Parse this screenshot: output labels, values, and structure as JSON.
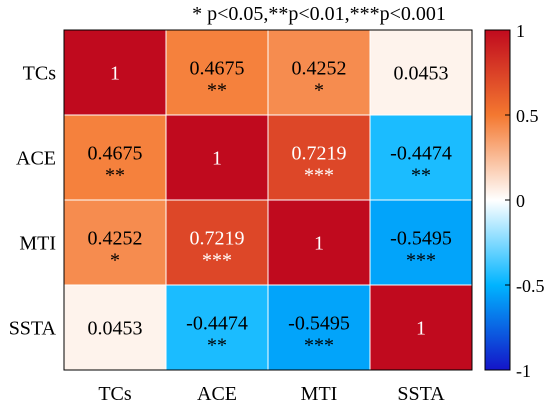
{
  "chart_data": {
    "type": "heatmap",
    "title": "* p<0.05,**p<0.01,***p<0.001",
    "rows": [
      "TCs",
      "ACE",
      "MTI",
      "SSTA"
    ],
    "columns": [
      "TCs",
      "ACE",
      "MTI",
      "SSTA"
    ],
    "cells": [
      [
        {
          "label": "1",
          "value": 1,
          "sig": ""
        },
        {
          "label": "0.4675",
          "value": 0.4675,
          "sig": "**"
        },
        {
          "label": "0.4252",
          "value": 0.4252,
          "sig": "*"
        },
        {
          "label": "0.0453",
          "value": 0.0453,
          "sig": ""
        }
      ],
      [
        {
          "label": "0.4675",
          "value": 0.4675,
          "sig": "**"
        },
        {
          "label": "1",
          "value": 1,
          "sig": ""
        },
        {
          "label": "0.7219",
          "value": 0.7219,
          "sig": "***"
        },
        {
          "label": "-0.4474",
          "value": -0.4474,
          "sig": "**"
        }
      ],
      [
        {
          "label": "0.4252",
          "value": 0.4252,
          "sig": "*"
        },
        {
          "label": "0.7219",
          "value": 0.7219,
          "sig": "***"
        },
        {
          "label": "1",
          "value": 1,
          "sig": ""
        },
        {
          "label": "-0.5495",
          "value": -0.5495,
          "sig": "***"
        }
      ],
      [
        {
          "label": "0.0453",
          "value": 0.0453,
          "sig": ""
        },
        {
          "label": "-0.4474",
          "value": -0.4474,
          "sig": "**"
        },
        {
          "label": "-0.5495",
          "value": -0.5495,
          "sig": "***"
        },
        {
          "label": "1",
          "value": 1,
          "sig": ""
        }
      ]
    ],
    "colorbar": {
      "range": [
        -1,
        1
      ],
      "ticks": [
        1,
        0.5,
        0,
        -0.5,
        -1
      ],
      "tick_labels": [
        "1",
        "0.5",
        "0",
        "-0.5",
        "-1"
      ],
      "colormap": [
        "#1414c8",
        "#00b4ff",
        "#ffffff",
        "#f47830",
        "#c00a1e"
      ]
    }
  }
}
